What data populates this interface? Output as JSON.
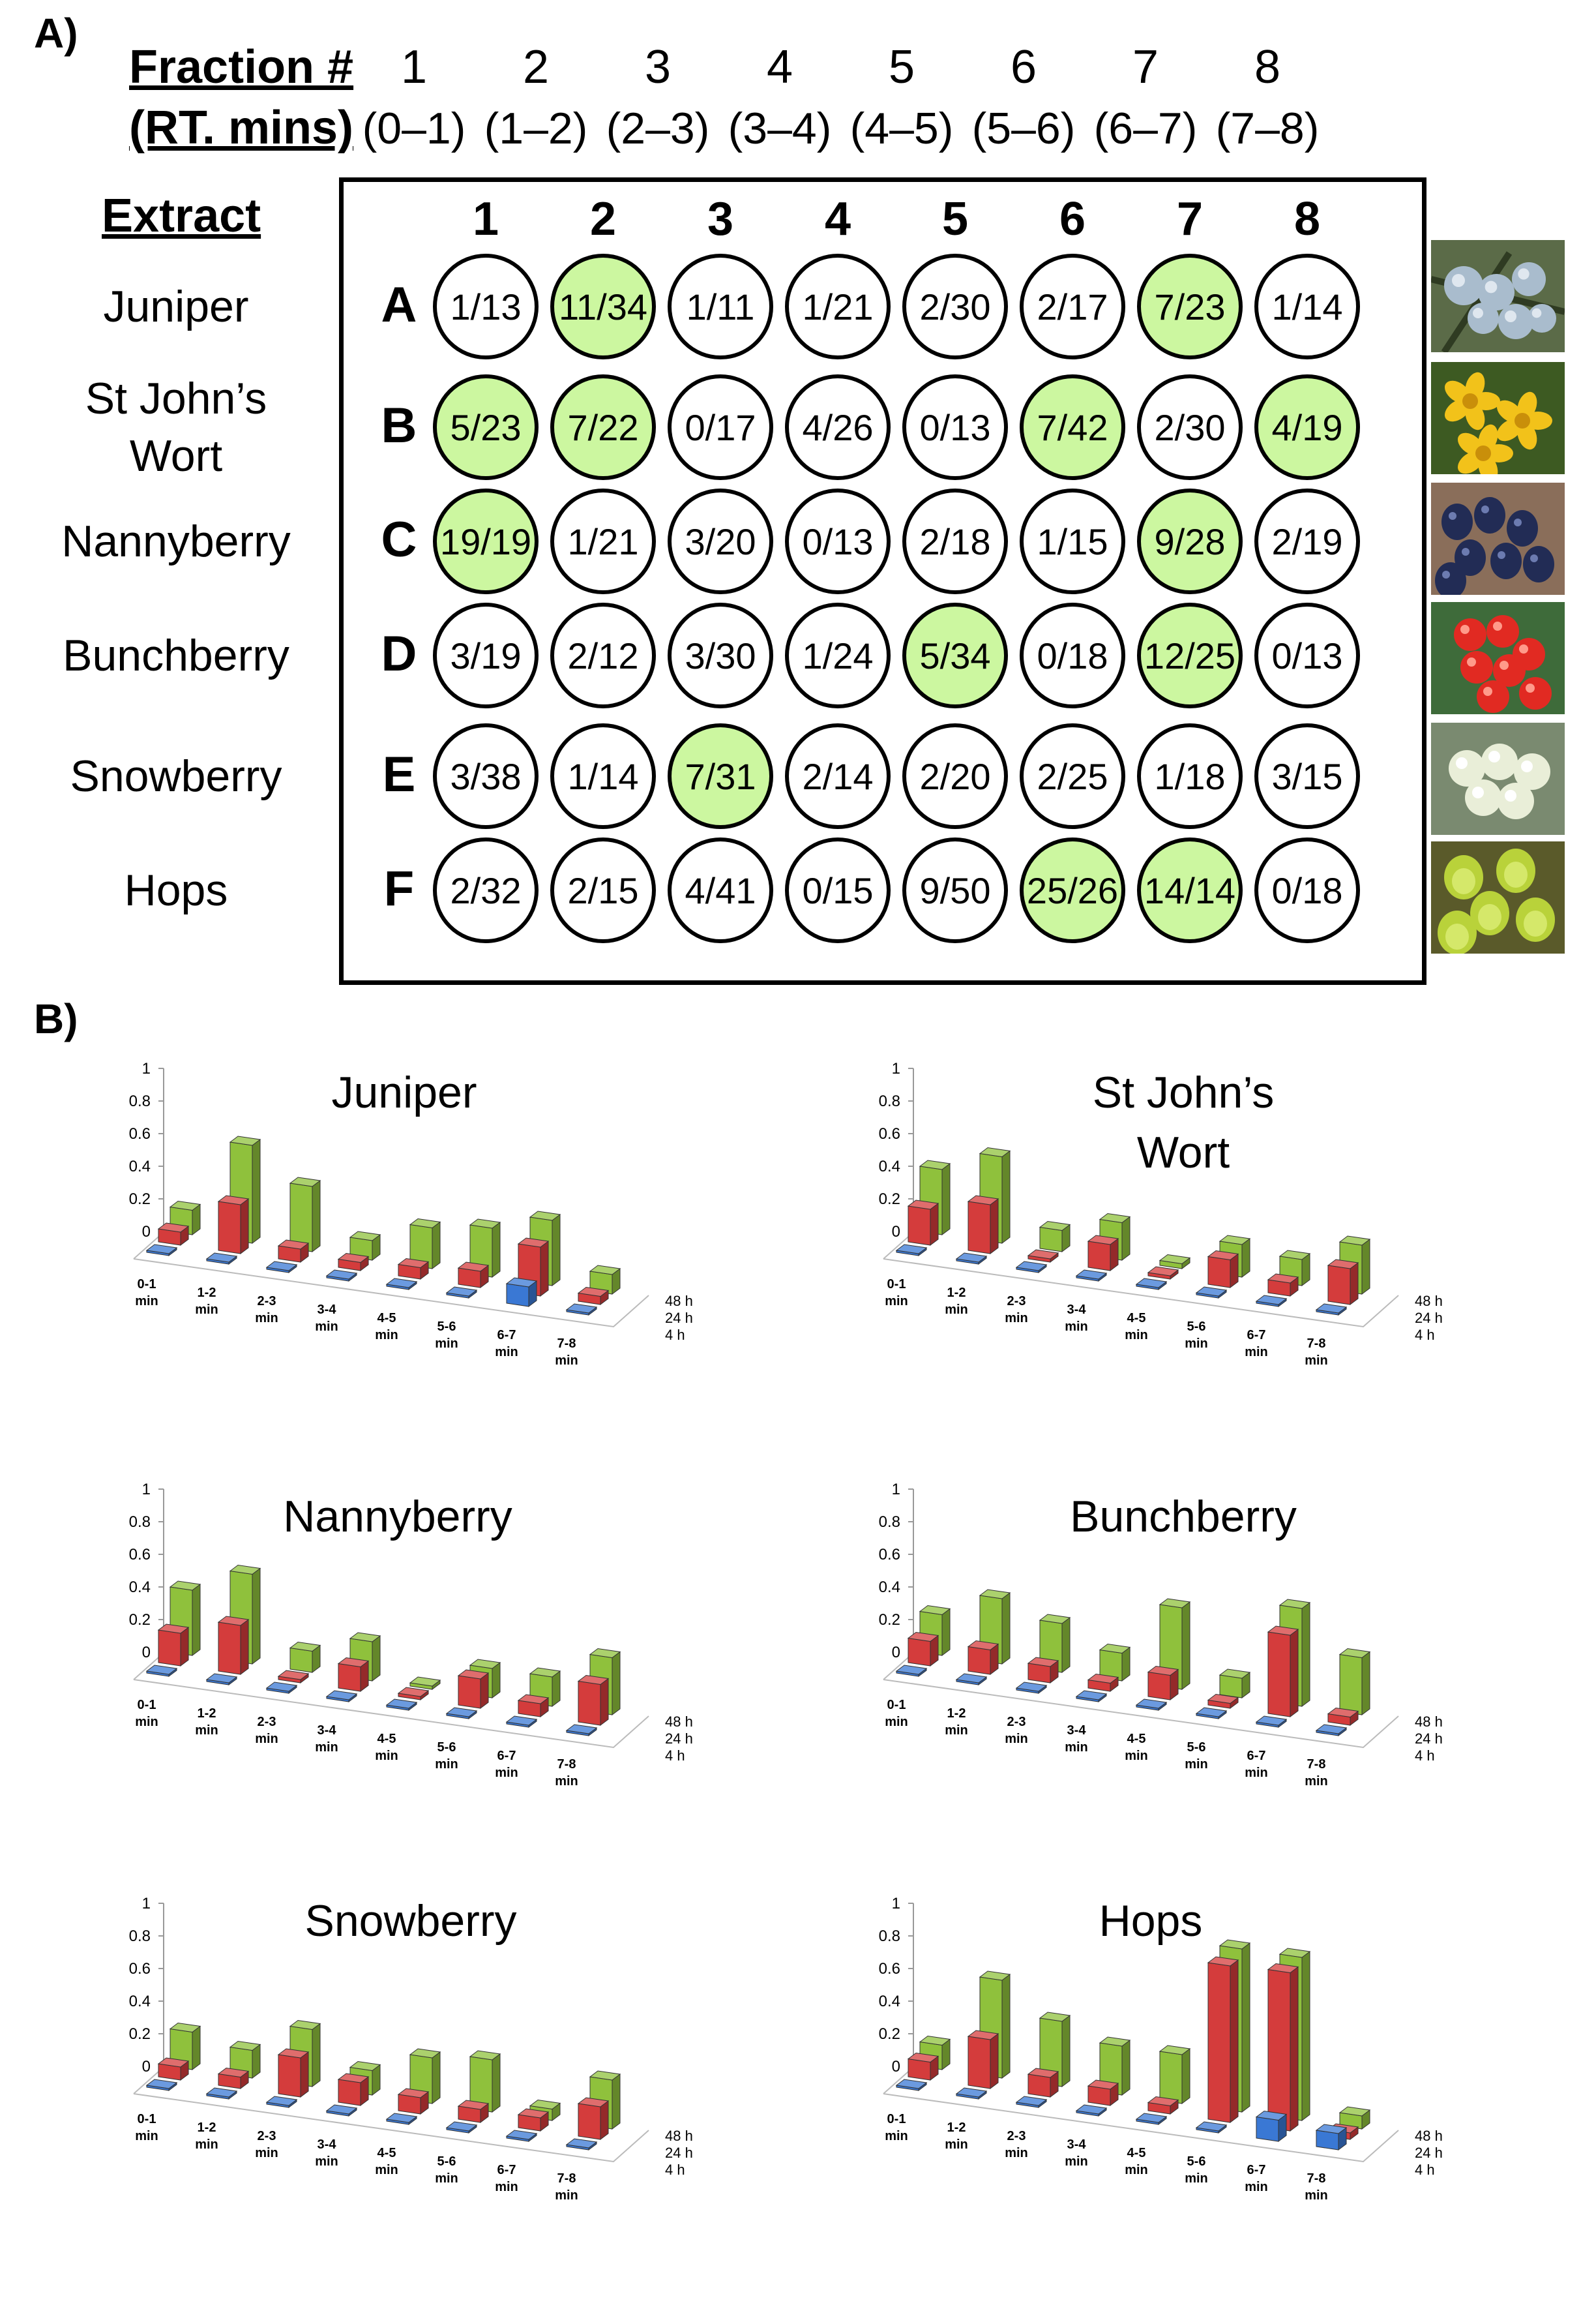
{
  "panel_a": {
    "label": "A)",
    "fraction_header": "Fraction #",
    "rt_header": "(RT. mins)",
    "extract_header": "Extract",
    "fractions": [
      "1",
      "2",
      "3",
      "4",
      "5",
      "6",
      "7",
      "8"
    ],
    "rt_ranges": [
      "(0–1)",
      "(1–2)",
      "(2–3)",
      "(3–4)",
      "(4–5)",
      "(5–6)",
      "(6–7)",
      "(7–8)"
    ],
    "plate_columns": [
      "1",
      "2",
      "3",
      "4",
      "5",
      "6",
      "7",
      "8"
    ],
    "rows": [
      {
        "row": "A",
        "extract": "Juniper",
        "wells": [
          "1/13",
          "11/34",
          "1/11",
          "1/21",
          "2/30",
          "2/17",
          "7/23",
          "1/14"
        ],
        "hits": [
          false,
          true,
          false,
          false,
          false,
          false,
          true,
          false
        ]
      },
      {
        "row": "B",
        "extract": "St John’s\nWort",
        "wells": [
          "5/23",
          "7/22",
          "0/17",
          "4/26",
          "0/13",
          "7/42",
          "2/30",
          "4/19"
        ],
        "hits": [
          true,
          true,
          false,
          false,
          false,
          true,
          false,
          true
        ]
      },
      {
        "row": "C",
        "extract": "Nannyberry",
        "wells": [
          "19/19",
          "1/21",
          "3/20",
          "0/13",
          "2/18",
          "1/15",
          "9/28",
          "2/19"
        ],
        "hits": [
          true,
          false,
          false,
          false,
          false,
          false,
          true,
          false
        ]
      },
      {
        "row": "D",
        "extract": "Bunchberry",
        "wells": [
          "3/19",
          "2/12",
          "3/30",
          "1/24",
          "5/34",
          "0/18",
          "12/25",
          "0/13"
        ],
        "hits": [
          false,
          false,
          false,
          false,
          true,
          false,
          true,
          false
        ]
      },
      {
        "row": "E",
        "extract": "Snowberry",
        "wells": [
          "3/38",
          "1/14",
          "7/31",
          "2/14",
          "2/20",
          "2/25",
          "1/18",
          "3/15"
        ],
        "hits": [
          false,
          false,
          true,
          false,
          false,
          false,
          false,
          false
        ]
      },
      {
        "row": "F",
        "extract": "Hops",
        "wells": [
          "2/32",
          "2/15",
          "4/41",
          "0/15",
          "9/50",
          "25/26",
          "14/14",
          "0/18"
        ],
        "hits": [
          false,
          false,
          false,
          false,
          false,
          true,
          true,
          false
        ]
      }
    ],
    "hit_color": "#ccf7a0",
    "photos": [
      "juniper-berries-photo",
      "st-johns-wort-flower-photo",
      "nannyberry-photo",
      "bunchberry-photo",
      "snowberry-photo",
      "hops-photo"
    ]
  },
  "panel_b": {
    "label": "B)",
    "colors": {
      "4 h": "#3a78d4",
      "24 h": "#d43c3c",
      "48 h": "#8fc13c"
    }
  },
  "chart_data": [
    {
      "type": "bar",
      "title": "Juniper",
      "categories": [
        "0-1 min",
        "1-2 min",
        "2-3 min",
        "3-4 min",
        "4-5 min",
        "5-6 min",
        "6-7 min",
        "7-8 min"
      ],
      "yticks": [
        "0",
        "0.2",
        "0.4",
        "0.6",
        "0.8",
        "1"
      ],
      "ylim": [
        0,
        1
      ],
      "depth_labels": [
        "4 h",
        "24 h",
        "48 h"
      ],
      "series": [
        {
          "name": "4 h",
          "values": [
            0,
            0,
            0,
            0,
            0,
            0,
            0.12,
            0
          ]
        },
        {
          "name": "24 h",
          "values": [
            0.08,
            0.3,
            0.08,
            0.05,
            0.07,
            0.1,
            0.3,
            0.05
          ]
        },
        {
          "name": "48 h",
          "values": [
            0.15,
            0.6,
            0.4,
            0.12,
            0.25,
            0.3,
            0.4,
            0.12
          ]
        }
      ]
    },
    {
      "type": "bar",
      "title": "St John’s\nWort",
      "categories": [
        "0-1 min",
        "1-2 min",
        "2-3 min",
        "3-4 min",
        "4-5 min",
        "5-6 min",
        "6-7 min",
        "7-8 min"
      ],
      "yticks": [
        "0",
        "0.2",
        "0.4",
        "0.6",
        "0.8",
        "1"
      ],
      "ylim": [
        0,
        1
      ],
      "depth_labels": [
        "4 h",
        "24 h",
        "48 h"
      ],
      "series": [
        {
          "name": "4 h",
          "values": [
            0,
            0,
            0,
            0,
            0,
            0,
            0,
            0
          ]
        },
        {
          "name": "24 h",
          "values": [
            0.22,
            0.3,
            0.02,
            0.16,
            0.02,
            0.17,
            0.08,
            0.22
          ]
        },
        {
          "name": "48 h",
          "values": [
            0.4,
            0.53,
            0.13,
            0.23,
            0.03,
            0.2,
            0.16,
            0.3
          ]
        }
      ]
    },
    {
      "type": "bar",
      "title": "Nannyberry",
      "categories": [
        "0-1 min",
        "1-2 min",
        "2-3 min",
        "3-4 min",
        "4-5 min",
        "5-6 min",
        "6-7 min",
        "7-8 min"
      ],
      "yticks": [
        "0",
        "0.2",
        "0.4",
        "0.6",
        "0.8",
        "1"
      ],
      "ylim": [
        0,
        1
      ],
      "depth_labels": [
        "4 h",
        "24 h",
        "48 h"
      ],
      "series": [
        {
          "name": "4 h",
          "values": [
            0,
            0,
            0,
            0,
            0,
            0,
            0,
            0
          ]
        },
        {
          "name": "24 h",
          "values": [
            0.2,
            0.3,
            0.02,
            0.15,
            0.02,
            0.18,
            0.08,
            0.25
          ]
        },
        {
          "name": "48 h",
          "values": [
            0.4,
            0.55,
            0.13,
            0.24,
            0.02,
            0.18,
            0.18,
            0.35
          ]
        }
      ]
    },
    {
      "type": "bar",
      "title": "Bunchberry",
      "categories": [
        "0-1 min",
        "1-2 min",
        "2-3 min",
        "3-4 min",
        "4-5 min",
        "5-6 min",
        "6-7 min",
        "7-8 min"
      ],
      "yticks": [
        "0",
        "0.2",
        "0.4",
        "0.6",
        "0.8",
        "1"
      ],
      "ylim": [
        0,
        1
      ],
      "depth_labels": [
        "4 h",
        "24 h",
        "48 h"
      ],
      "series": [
        {
          "name": "4 h",
          "values": [
            0,
            0,
            0,
            0,
            0,
            0,
            0,
            0
          ]
        },
        {
          "name": "24 h",
          "values": [
            0.15,
            0.15,
            0.1,
            0.05,
            0.15,
            0.03,
            0.5,
            0.05
          ]
        },
        {
          "name": "48 h",
          "values": [
            0.25,
            0.4,
            0.3,
            0.17,
            0.5,
            0.12,
            0.6,
            0.35
          ]
        }
      ]
    },
    {
      "type": "bar",
      "title": "Snowberry",
      "categories": [
        "0-1 min",
        "1-2 min",
        "2-3 min",
        "3-4 min",
        "4-5 min",
        "5-6 min",
        "6-7 min",
        "7-8 min"
      ],
      "yticks": [
        "0",
        "0.2",
        "0.4",
        "0.6",
        "0.8",
        "1"
      ],
      "ylim": [
        0,
        1
      ],
      "depth_labels": [
        "4 h",
        "24 h",
        "48 h"
      ],
      "series": [
        {
          "name": "4 h",
          "values": [
            0,
            0,
            0,
            0,
            0,
            0,
            0,
            0
          ]
        },
        {
          "name": "24 h",
          "values": [
            0.08,
            0.07,
            0.24,
            0.14,
            0.1,
            0.08,
            0.08,
            0.2
          ]
        },
        {
          "name": "48 h",
          "values": [
            0.23,
            0.17,
            0.35,
            0.15,
            0.28,
            0.32,
            0.07,
            0.3
          ]
        }
      ]
    },
    {
      "type": "bar",
      "title": "Hops",
      "categories": [
        "0-1 min",
        "1-2 min",
        "2-3 min",
        "3-4 min",
        "4-5 min",
        "5-6 min",
        "6-7 min",
        "7-8 min"
      ],
      "yticks": [
        "0",
        "0.2",
        "0.4",
        "0.6",
        "0.8",
        "1"
      ],
      "ylim": [
        0,
        1
      ],
      "depth_labels": [
        "4 h",
        "24 h",
        "48 h"
      ],
      "series": [
        {
          "name": "4 h",
          "values": [
            0,
            0,
            0,
            0,
            0,
            0,
            0.13,
            0.1
          ]
        },
        {
          "name": "24 h",
          "values": [
            0.11,
            0.3,
            0.12,
            0.1,
            0.05,
            0.96,
            0.97,
            0.04
          ]
        },
        {
          "name": "48 h",
          "values": [
            0.15,
            0.6,
            0.4,
            0.3,
            0.3,
            1,
            1,
            0.08
          ]
        }
      ]
    }
  ]
}
